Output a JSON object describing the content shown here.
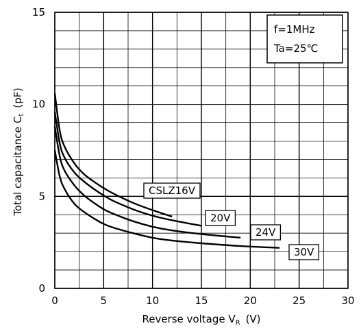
{
  "chart_data": {
    "type": "line",
    "xlabel_main": "Reverse voltage  V",
    "xlabel_sub": "R",
    "xlabel_unit": "(V)",
    "ylabel_main": "Total capacitance  C",
    "ylabel_sub": "t",
    "ylabel_unit": "(pF)",
    "xlim": [
      0,
      30
    ],
    "ylim": [
      0,
      15
    ],
    "x_ticks": [
      0,
      5,
      10,
      15,
      20,
      25,
      30
    ],
    "y_ticks": [
      0,
      5,
      10,
      15
    ],
    "x_minor_step": 2.5,
    "y_minor_step": 1,
    "grid": true,
    "conditions": [
      "f=1MHz",
      "Ta=25℃"
    ],
    "series": [
      {
        "name": "CSLZ16V",
        "x": [
          0,
          0.5,
          1,
          2,
          3,
          4,
          5,
          6,
          8,
          10,
          12
        ],
        "y": [
          10.6,
          8.6,
          7.7,
          6.8,
          6.2,
          5.8,
          5.45,
          5.15,
          4.65,
          4.25,
          3.9
        ]
      },
      {
        "name": "20V",
        "x": [
          0,
          0.5,
          1,
          2,
          3,
          4,
          5,
          6,
          8,
          10,
          12,
          15
        ],
        "y": [
          9.6,
          7.9,
          7.1,
          6.3,
          5.8,
          5.4,
          5.05,
          4.75,
          4.3,
          3.95,
          3.7,
          3.4
        ]
      },
      {
        "name": "24V",
        "x": [
          0,
          0.5,
          1,
          2,
          3,
          4,
          5,
          6,
          8,
          10,
          12,
          15,
          19
        ],
        "y": [
          8.8,
          7.2,
          6.4,
          5.6,
          5.05,
          4.65,
          4.3,
          4.05,
          3.65,
          3.35,
          3.15,
          2.95,
          2.75
        ]
      },
      {
        "name": "30V",
        "x": [
          0,
          0.5,
          1,
          2,
          3,
          4,
          5,
          6,
          8,
          10,
          12,
          15,
          19,
          23
        ],
        "y": [
          7.5,
          6.1,
          5.4,
          4.6,
          4.15,
          3.8,
          3.5,
          3.3,
          3.0,
          2.75,
          2.6,
          2.45,
          2.3,
          2.2
        ]
      }
    ]
  }
}
